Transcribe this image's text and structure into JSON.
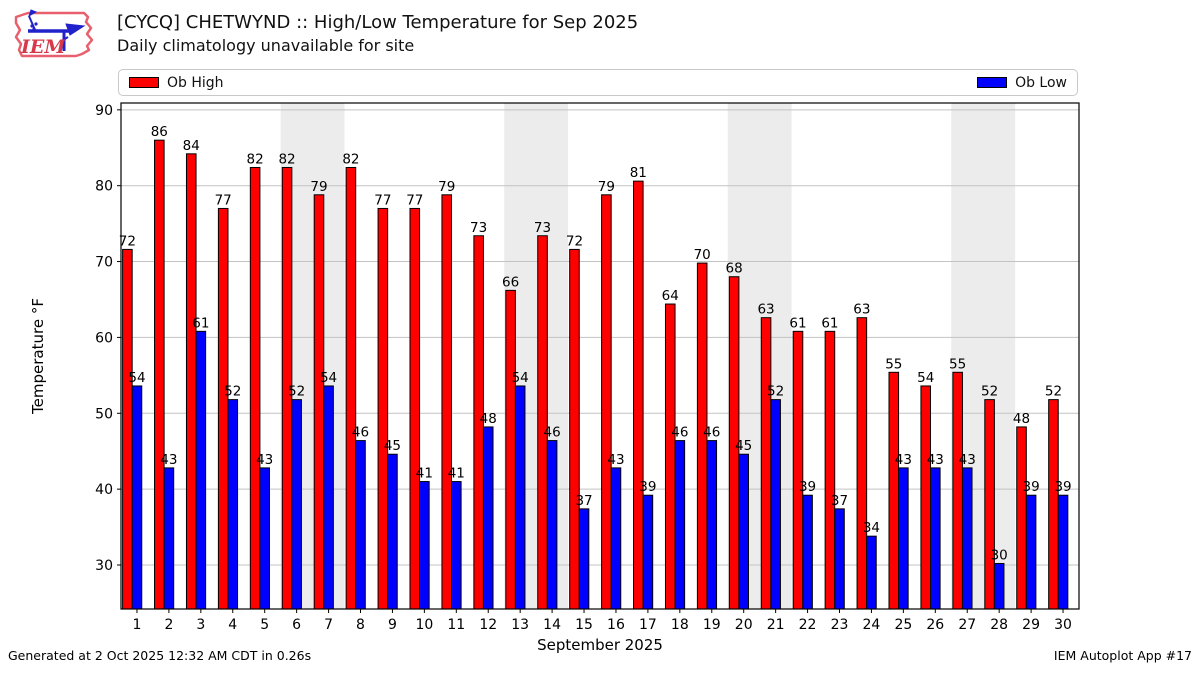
{
  "header": {
    "logo_text": "IEM"
  },
  "chart_data": {
    "type": "bar",
    "title": "[CYCQ] CHETWYND :: High/Low Temperature for Sep 2025",
    "subtitle": "Daily climatology unavailable for site",
    "xlabel": "September 2025",
    "ylabel": "Temperature °F",
    "ylim": [
      24.2,
      90.9
    ],
    "yticks": [
      30,
      40,
      50,
      60,
      70,
      80,
      90
    ],
    "xlim_days": [
      0.5,
      30.5
    ],
    "categories": [
      1,
      2,
      3,
      4,
      5,
      6,
      7,
      8,
      9,
      10,
      11,
      12,
      13,
      14,
      15,
      16,
      17,
      18,
      19,
      20,
      21,
      22,
      23,
      24,
      25,
      26,
      27,
      28,
      29,
      30
    ],
    "grid": true,
    "grid_color": "#c3c3c3",
    "weekend_bands": [
      [
        5.5,
        7.5
      ],
      [
        12.5,
        14.5
      ],
      [
        19.5,
        21.5
      ],
      [
        26.5,
        28.5
      ]
    ],
    "band_color": "#ececec",
    "bar_edge_color": "#000000",
    "legend_position": "top-full-width",
    "series": [
      {
        "name": "Ob High",
        "color": "#ff0000",
        "values": [
          71.6,
          86.0,
          84.2,
          77.0,
          82.4,
          82.4,
          78.8,
          82.4,
          77.0,
          77.0,
          78.8,
          73.4,
          66.2,
          73.4,
          71.6,
          78.8,
          80.6,
          64.4,
          69.8,
          68.0,
          62.6,
          60.8,
          60.8,
          62.6,
          55.4,
          53.6,
          55.4,
          51.8,
          48.2,
          51.8
        ],
        "labels": [
          72,
          86,
          84,
          77,
          82,
          82,
          79,
          82,
          77,
          77,
          79,
          73,
          66,
          73,
          72,
          79,
          81,
          64,
          70,
          68,
          63,
          61,
          61,
          63,
          55,
          54,
          55,
          52,
          48,
          52
        ]
      },
      {
        "name": "Ob Low",
        "color": "#0000ff",
        "values": [
          53.6,
          42.8,
          60.8,
          51.8,
          42.8,
          51.8,
          53.6,
          46.4,
          44.6,
          41.0,
          41.0,
          48.2,
          53.6,
          46.4,
          37.4,
          42.8,
          39.2,
          46.4,
          46.4,
          44.6,
          51.8,
          39.2,
          37.4,
          33.8,
          42.8,
          42.8,
          42.8,
          30.2,
          39.2,
          39.2
        ],
        "labels": [
          54,
          43,
          61,
          52,
          43,
          52,
          54,
          46,
          45,
          41,
          41,
          48,
          54,
          46,
          37,
          43,
          39,
          46,
          46,
          45,
          52,
          39,
          37,
          34,
          43,
          43,
          43,
          30,
          39,
          39
        ]
      }
    ]
  },
  "footer": {
    "generated": "Generated at 2 Oct 2025 12:32 AM CDT in 0.26s",
    "credit": "IEM Autoplot App #17"
  }
}
